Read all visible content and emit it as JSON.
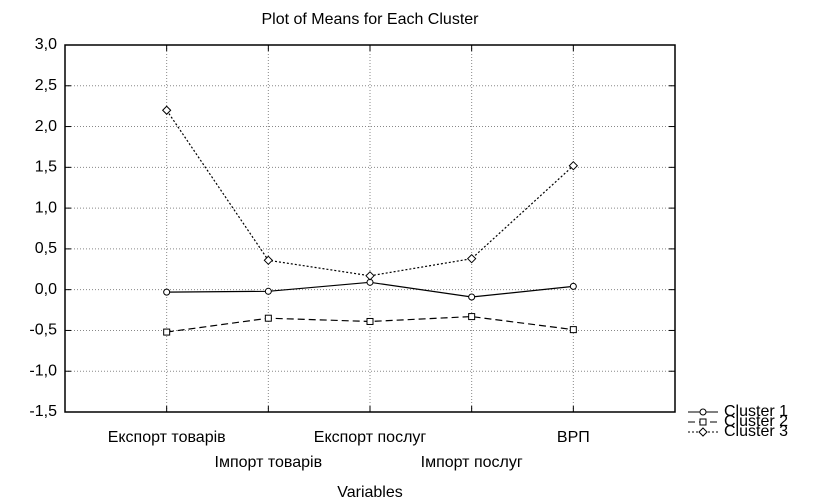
{
  "chart_data": {
    "type": "line",
    "title": "Plot of Means for Each Cluster",
    "x_label": "Variables",
    "categories": [
      "Експорт товарів",
      "Імпорт товарів",
      "Експорт послуг",
      "Імпорт послуг",
      "ВРП"
    ],
    "series": [
      {
        "name": "Cluster 1",
        "color": "#000000",
        "dash": "solid",
        "marker": "circle",
        "values": [
          -0.03,
          -0.02,
          0.09,
          -0.09,
          0.04
        ]
      },
      {
        "name": "Cluster 2",
        "color": "#000000",
        "dash": "dashed",
        "marker": "square",
        "values": [
          -0.52,
          -0.35,
          -0.39,
          -0.33,
          -0.49
        ]
      },
      {
        "name": "Cluster 3",
        "color": "#000000",
        "dash": "dotted",
        "marker": "diamond",
        "values": [
          2.2,
          0.36,
          0.17,
          0.38,
          1.52
        ]
      }
    ],
    "ylim": [
      -1.5,
      3.0
    ],
    "yticks": [
      {
        "value": -1.5,
        "label": "-1,5"
      },
      {
        "value": -1.0,
        "label": "-1,0"
      },
      {
        "value": -0.5,
        "label": "-0,5"
      },
      {
        "value": 0.0,
        "label": "0,0"
      },
      {
        "value": 0.5,
        "label": "0,5"
      },
      {
        "value": 1.0,
        "label": "1,0"
      },
      {
        "value": 1.5,
        "label": "1,5"
      },
      {
        "value": 2.0,
        "label": "2,0"
      },
      {
        "value": 2.5,
        "label": "2,5"
      },
      {
        "value": 3.0,
        "label": "3,0"
      }
    ],
    "grid": true,
    "legend": "lower right"
  }
}
